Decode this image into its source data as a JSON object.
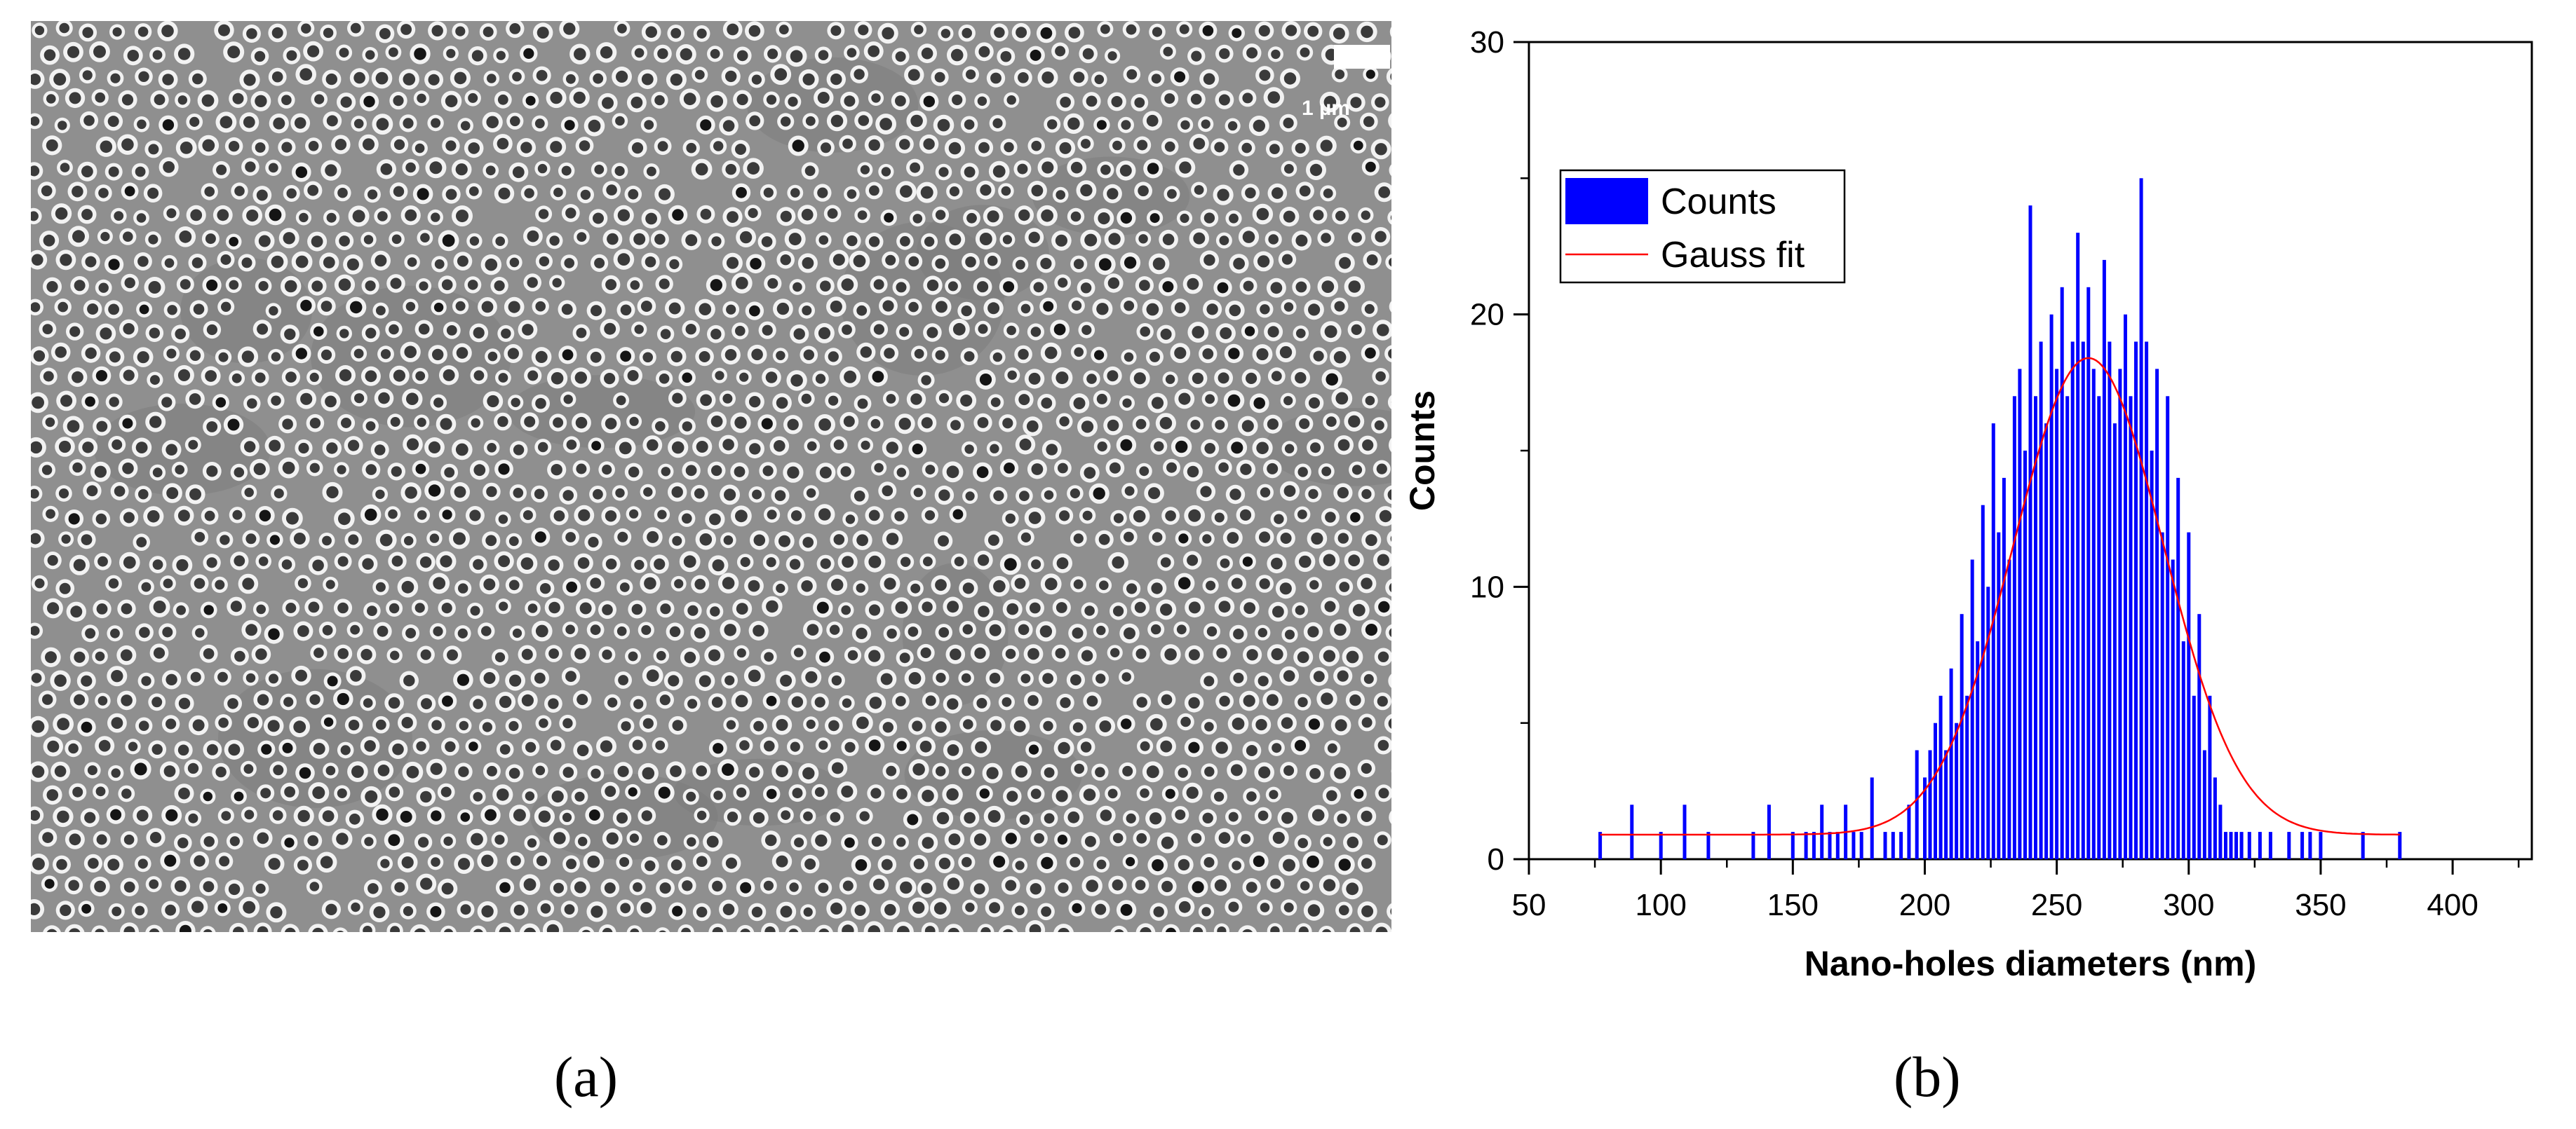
{
  "panel_a": {
    "scale_bar_label": "1 µm",
    "caption": "(a)"
  },
  "panel_b": {
    "caption": "(b)"
  },
  "chart_data": {
    "type": "bar",
    "title": "",
    "xlabel": "Nano-holes diameters (nm)",
    "ylabel": "Counts",
    "xlim": [
      50,
      430
    ],
    "ylim": [
      0,
      30
    ],
    "xticks": [
      50,
      100,
      150,
      200,
      250,
      300,
      350,
      400
    ],
    "yticks": [
      0,
      10,
      20,
      30
    ],
    "grid": false,
    "legend_position": "top-left",
    "legend": [
      {
        "label": "Counts",
        "color": "#0000ff",
        "kind": "bar"
      },
      {
        "label": "Gauss fit",
        "color": "#ff0000",
        "kind": "line"
      }
    ],
    "series": [
      {
        "name": "Counts",
        "type": "bar",
        "color": "#0000ff",
        "x": [
          77,
          89,
          100,
          109,
          118,
          135,
          141,
          150,
          155,
          158,
          161,
          164,
          167,
          170,
          173,
          176,
          180,
          185,
          188,
          191,
          194,
          197,
          200,
          202,
          204,
          206,
          208,
          210,
          212,
          214,
          216,
          218,
          220,
          222,
          224,
          226,
          228,
          230,
          232,
          234,
          236,
          238,
          240,
          242,
          244,
          246,
          248,
          250,
          252,
          254,
          256,
          258,
          260,
          262,
          264,
          266,
          268,
          270,
          272,
          274,
          276,
          278,
          280,
          282,
          284,
          286,
          288,
          290,
          292,
          294,
          296,
          298,
          300,
          302,
          304,
          306,
          308,
          310,
          312,
          314,
          316,
          318,
          320,
          323,
          327,
          331,
          338,
          343,
          346,
          350,
          366,
          380
        ],
        "values": [
          1,
          2,
          1,
          2,
          1,
          1,
          2,
          1,
          1,
          1,
          2,
          1,
          1,
          2,
          1,
          1,
          3,
          1,
          1,
          1,
          2,
          4,
          3,
          4,
          5,
          6,
          4,
          7,
          5,
          9,
          6,
          11,
          8,
          13,
          10,
          16,
          12,
          14,
          11,
          17,
          18,
          15,
          24,
          17,
          19,
          16,
          20,
          18,
          21,
          17,
          19,
          23,
          19,
          21,
          18,
          17,
          22,
          19,
          16,
          18,
          20,
          17,
          19,
          25,
          19,
          15,
          18,
          12,
          17,
          11,
          14,
          8,
          12,
          6,
          9,
          4,
          6,
          3,
          2,
          1,
          1,
          1,
          1,
          1,
          1,
          1,
          1,
          1,
          1,
          1,
          1,
          1
        ]
      },
      {
        "name": "Gauss fit",
        "type": "line",
        "color": "#ff0000",
        "model": "gauss",
        "y0": 0.9,
        "xc": 262,
        "w": 57,
        "A": 17.5,
        "x_range": [
          77,
          380
        ]
      }
    ]
  }
}
